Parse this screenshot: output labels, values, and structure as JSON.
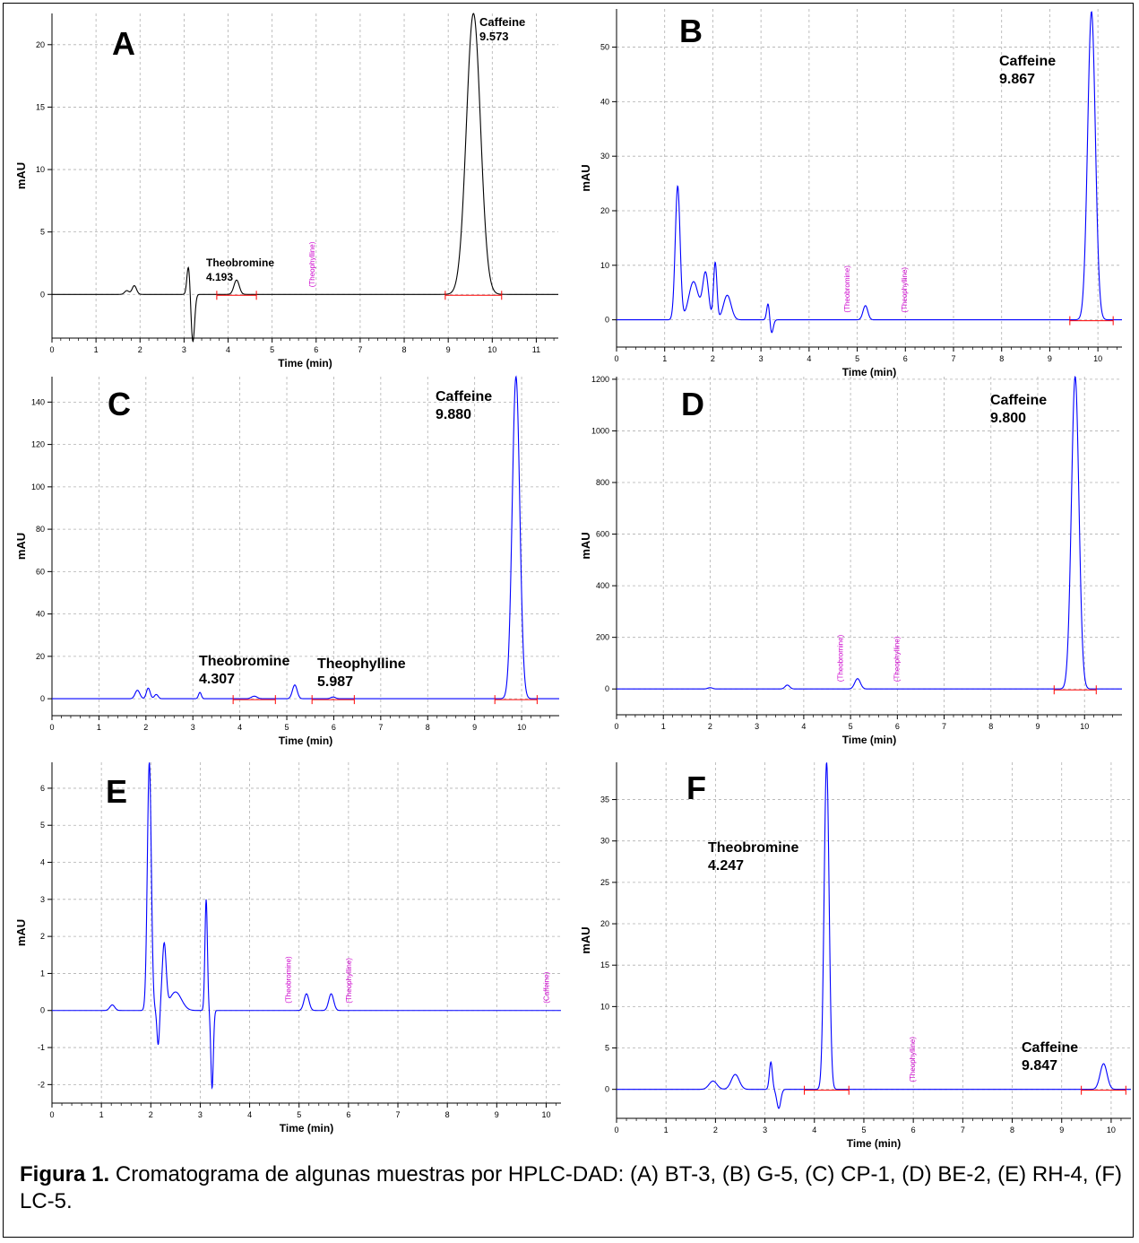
{
  "figure_caption": {
    "label": "Figura 1.",
    "text": "Cromatograma de algunas muestras por HPLC-DAD: (A) BT-3, (B) G-5, (C) CP-1, (D) BE-2, (E) RH-4, (F) LC-5."
  },
  "colors": {
    "trace_A": "#000000",
    "trace_blue": "#0000ff",
    "marker_text": "#cc00cc",
    "baseline_marks": "#ff0000",
    "grid": "#b0b0b0"
  },
  "chart_data": [
    {
      "panel": "A",
      "type": "line",
      "xlabel": "Time (min)",
      "ylabel": "mAU",
      "xlim": [
        0,
        11.5
      ],
      "ylim": [
        -3.5,
        22.5
      ],
      "xticks": [
        0,
        1,
        2,
        3,
        4,
        5,
        6,
        7,
        8,
        9,
        10,
        11
      ],
      "yticks": [
        0,
        5,
        10,
        15,
        20
      ],
      "grid": true,
      "trace_color": "#000000",
      "peaks": [
        {
          "t": 1.7,
          "h": 0.3,
          "w": 0.05
        },
        {
          "t": 1.87,
          "h": 0.7,
          "w": 0.05
        },
        {
          "t": 3.1,
          "h": 2.3,
          "w": 0.035
        },
        {
          "t": 3.2,
          "h": -3.8,
          "w": 0.04
        },
        {
          "t": 4.193,
          "h": 1.15,
          "w": 0.06
        },
        {
          "t": 9.573,
          "h": 22.5,
          "w": 0.16
        }
      ],
      "peak_labels": [
        {
          "name": "Caffeine",
          "rt": "9.573",
          "t": 9.573
        },
        {
          "name": "Theobromine",
          "rt": "4.193",
          "t": 4.193
        }
      ],
      "expected_markers": [
        "(Theophylline)"
      ]
    },
    {
      "panel": "B",
      "type": "line",
      "xlabel": "Time (min)",
      "ylabel": "mAU",
      "xlim": [
        0,
        10.5
      ],
      "ylim": [
        -5,
        57
      ],
      "xticks": [
        0,
        1,
        2,
        3,
        4,
        5,
        6,
        7,
        8,
        9,
        10
      ],
      "yticks": [
        0,
        10,
        20,
        30,
        40,
        50
      ],
      "grid": true,
      "trace_color": "#0000ff",
      "peaks": [
        {
          "t": 1.27,
          "h": 24.5,
          "w": 0.05
        },
        {
          "t": 1.6,
          "h": 7,
          "w": 0.1
        },
        {
          "t": 1.85,
          "h": 8.5,
          "w": 0.06
        },
        {
          "t": 2.05,
          "h": 10.5,
          "w": 0.035
        },
        {
          "t": 2.3,
          "h": 4.5,
          "w": 0.08
        },
        {
          "t": 3.15,
          "h": 3.2,
          "w": 0.03
        },
        {
          "t": 3.22,
          "h": -2.5,
          "w": 0.035
        },
        {
          "t": 5.17,
          "h": 2.6,
          "w": 0.05
        },
        {
          "t": 9.867,
          "h": 56.5,
          "w": 0.08
        }
      ],
      "peak_labels": [
        {
          "name": "Caffeine",
          "rt": "9.867",
          "t": 9.867
        }
      ],
      "expected_markers": [
        "(Theobromine)",
        "(Theophylline)"
      ]
    },
    {
      "panel": "C",
      "type": "line",
      "xlabel": "Time (min)",
      "ylabel": "mAU",
      "xlim": [
        0,
        10.8
      ],
      "ylim": [
        -8,
        152
      ],
      "xticks": [
        0,
        1,
        2,
        3,
        4,
        5,
        6,
        7,
        8,
        9,
        10
      ],
      "yticks": [
        0,
        20,
        40,
        60,
        80,
        100,
        120,
        140
      ],
      "grid": true,
      "trace_color": "#0000ff",
      "peaks": [
        {
          "t": 1.82,
          "h": 4,
          "w": 0.05
        },
        {
          "t": 2.05,
          "h": 5,
          "w": 0.04
        },
        {
          "t": 2.22,
          "h": 2,
          "w": 0.04
        },
        {
          "t": 3.15,
          "h": 3,
          "w": 0.03
        },
        {
          "t": 4.307,
          "h": 1.2,
          "w": 0.06
        },
        {
          "t": 5.17,
          "h": 6.5,
          "w": 0.05
        },
        {
          "t": 5.987,
          "h": 0.8,
          "w": 0.05
        },
        {
          "t": 9.88,
          "h": 152,
          "w": 0.08
        }
      ],
      "peak_labels": [
        {
          "name": "Caffeine",
          "rt": "9.880",
          "t": 9.88
        },
        {
          "name": "Theobromine",
          "rt": "4.307",
          "t": 4.307
        },
        {
          "name": "Theophylline",
          "rt": "5.987",
          "t": 5.987
        }
      ],
      "expected_markers": []
    },
    {
      "panel": "D",
      "type": "line",
      "xlabel": "Time (min)",
      "ylabel": "mAU",
      "xlim": [
        0,
        10.8
      ],
      "ylim": [
        -100,
        1210
      ],
      "xticks": [
        0,
        1,
        2,
        3,
        4,
        5,
        6,
        7,
        8,
        9,
        10
      ],
      "yticks": [
        0,
        200,
        400,
        600,
        800,
        1000,
        1200
      ],
      "grid": true,
      "trace_color": "#0000ff",
      "peaks": [
        {
          "t": 2.0,
          "h": 5,
          "w": 0.05
        },
        {
          "t": 3.65,
          "h": 15,
          "w": 0.05
        },
        {
          "t": 5.15,
          "h": 40,
          "w": 0.06
        },
        {
          "t": 9.8,
          "h": 1210,
          "w": 0.08
        }
      ],
      "peak_labels": [
        {
          "name": "Caffeine",
          "rt": "9.800",
          "t": 9.8
        }
      ],
      "expected_markers": [
        "(Theobromine)",
        "(Theophylline)"
      ]
    },
    {
      "panel": "E",
      "type": "line",
      "xlabel": "Time (min)",
      "ylabel": "mAU",
      "xlim": [
        0,
        10.3
      ],
      "ylim": [
        -2.5,
        6.7
      ],
      "xticks": [
        0,
        1,
        2,
        3,
        4,
        5,
        6,
        7,
        8,
        9,
        10
      ],
      "yticks": [
        -2,
        -1,
        0,
        1,
        2,
        3,
        4,
        5,
        6
      ],
      "grid": true,
      "trace_color": "#0000ff",
      "peaks": [
        {
          "t": 1.22,
          "h": 0.15,
          "w": 0.05
        },
        {
          "t": 1.97,
          "h": 6.7,
          "w": 0.04
        },
        {
          "t": 2.15,
          "h": -0.95,
          "w": 0.025
        },
        {
          "t": 2.27,
          "h": 1.75,
          "w": 0.04
        },
        {
          "t": 2.5,
          "h": 0.5,
          "w": 0.12
        },
        {
          "t": 3.12,
          "h": 3.0,
          "w": 0.025
        },
        {
          "t": 3.24,
          "h": -2.1,
          "w": 0.025
        },
        {
          "t": 5.15,
          "h": 0.45,
          "w": 0.05
        },
        {
          "t": 5.65,
          "h": 0.45,
          "w": 0.05
        }
      ],
      "peak_labels": [],
      "expected_markers": [
        "(Theobromine)",
        "(Theophylline)",
        "(Caffeine)"
      ]
    },
    {
      "panel": "F",
      "type": "line",
      "xlabel": "Time (min)",
      "ylabel": "mAU",
      "xlim": [
        0,
        10.4
      ],
      "ylim": [
        -3.5,
        39.5
      ],
      "xticks": [
        0,
        1,
        2,
        3,
        4,
        5,
        6,
        7,
        8,
        9,
        10
      ],
      "yticks": [
        0,
        5,
        10,
        15,
        20,
        25,
        30,
        35
      ],
      "grid": true,
      "trace_color": "#0000ff",
      "peaks": [
        {
          "t": 1.95,
          "h": 1.0,
          "w": 0.08
        },
        {
          "t": 2.4,
          "h": 1.8,
          "w": 0.08
        },
        {
          "t": 3.12,
          "h": 3.3,
          "w": 0.03
        },
        {
          "t": 3.28,
          "h": -2.3,
          "w": 0.04
        },
        {
          "t": 4.247,
          "h": 39.5,
          "w": 0.05
        },
        {
          "t": 9.847,
          "h": 3.1,
          "w": 0.07
        }
      ],
      "peak_labels": [
        {
          "name": "Theobromine",
          "rt": "4.247",
          "t": 4.247
        },
        {
          "name": "Caffeine",
          "rt": "9.847",
          "t": 9.847
        }
      ],
      "expected_markers": [
        "(Theophylline)"
      ]
    }
  ]
}
